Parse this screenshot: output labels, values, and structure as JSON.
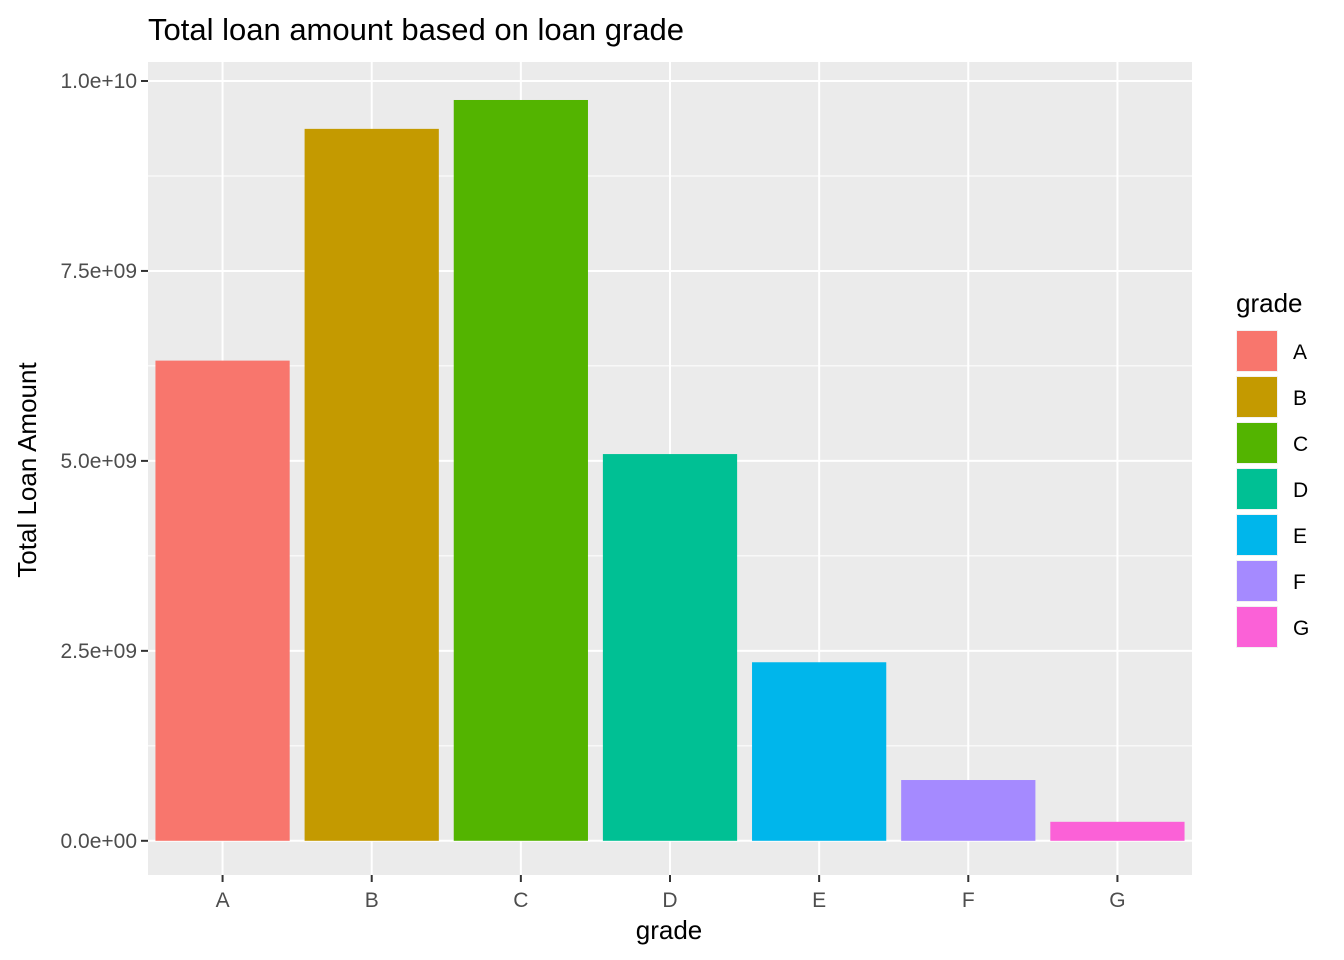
{
  "chart_data": {
    "type": "bar",
    "title": "Total loan amount based on loan grade",
    "xlabel": "grade",
    "ylabel": "Total Loan Amount",
    "categories": [
      "A",
      "B",
      "C",
      "D",
      "E",
      "F",
      "G"
    ],
    "values": [
      6320000000,
      9370000000,
      9750000000,
      5090000000,
      2350000000,
      800000000,
      250000000
    ],
    "colors": [
      "#F8766D",
      "#C49A00",
      "#53B400",
      "#00C094",
      "#00B6EB",
      "#A58AFF",
      "#FB61D7"
    ],
    "ylim": [
      -450000000,
      10250000000
    ],
    "yticks": [
      0,
      2500000000,
      5000000000,
      7500000000,
      10000000000
    ],
    "ytick_labels": [
      "0.0e+00",
      "2.5e+09",
      "5.0e+09",
      "7.5e+09",
      "1.0e+10"
    ],
    "panel_background": "#EBEBEB",
    "grid": true,
    "legend": {
      "title": "grade",
      "position": "right",
      "entries": [
        "A",
        "B",
        "C",
        "D",
        "E",
        "F",
        "G"
      ]
    }
  }
}
